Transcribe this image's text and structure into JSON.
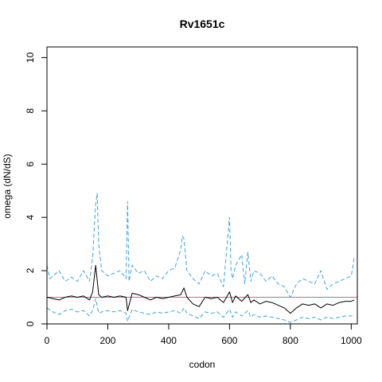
{
  "chart_data": {
    "type": "line",
    "title": "Rv1651c",
    "xlabel": "codon",
    "ylabel": "omega (dN/dS)",
    "xlim": [
      0,
      1020
    ],
    "ylim": [
      0,
      10.4
    ],
    "x_ticks": [
      0,
      200,
      400,
      600,
      800,
      1000
    ],
    "y_ticks": [
      0,
      2,
      4,
      6,
      8,
      10
    ],
    "grid": false,
    "reference_line": {
      "y": 1,
      "color": "#cc6688"
    },
    "series": [
      {
        "role": "estimate",
        "color": "#000000",
        "dash": "solid",
        "x": [
          0,
          20,
          40,
          60,
          80,
          100,
          120,
          140,
          150,
          160,
          170,
          180,
          200,
          220,
          240,
          260,
          265,
          280,
          300,
          320,
          340,
          360,
          380,
          400,
          420,
          440,
          450,
          460,
          480,
          500,
          520,
          540,
          560,
          580,
          600,
          610,
          620,
          640,
          660,
          670,
          680,
          700,
          720,
          740,
          760,
          780,
          800,
          820,
          840,
          860,
          880,
          900,
          920,
          940,
          960,
          980,
          1000,
          1010
        ],
        "y": [
          1.0,
          0.95,
          0.9,
          1.0,
          1.05,
          1.0,
          1.05,
          0.9,
          1.2,
          2.2,
          1.1,
          1.0,
          1.05,
          1.0,
          1.05,
          1.0,
          0.5,
          1.15,
          1.1,
          1.0,
          0.9,
          1.0,
          0.95,
          1.0,
          1.05,
          1.1,
          1.35,
          1.0,
          0.75,
          0.65,
          1.0,
          0.95,
          1.0,
          0.8,
          1.2,
          0.8,
          1.05,
          0.85,
          1.1,
          0.8,
          0.9,
          0.75,
          0.85,
          0.8,
          0.7,
          0.6,
          0.4,
          0.6,
          0.75,
          0.7,
          0.75,
          0.6,
          0.75,
          0.7,
          0.8,
          0.85,
          0.85,
          0.9
        ]
      },
      {
        "role": "upper-bound",
        "color": "#3fa0e0",
        "dash": "dashed",
        "x": [
          0,
          10,
          20,
          40,
          60,
          80,
          100,
          120,
          140,
          150,
          160,
          165,
          170,
          180,
          200,
          220,
          240,
          260,
          265,
          270,
          280,
          300,
          320,
          340,
          360,
          380,
          400,
          420,
          440,
          445,
          450,
          460,
          480,
          500,
          520,
          540,
          560,
          580,
          600,
          605,
          610,
          620,
          640,
          650,
          660,
          670,
          680,
          700,
          720,
          740,
          760,
          780,
          800,
          820,
          840,
          860,
          880,
          900,
          920,
          940,
          960,
          980,
          1000,
          1010
        ],
        "y": [
          2.2,
          1.7,
          1.8,
          2.0,
          1.6,
          1.75,
          1.6,
          2.0,
          1.6,
          2.5,
          4.5,
          4.9,
          3.0,
          2.0,
          1.8,
          1.9,
          2.0,
          1.7,
          4.6,
          1.6,
          2.2,
          1.9,
          2.0,
          1.6,
          1.8,
          1.7,
          2.0,
          2.1,
          2.8,
          3.3,
          3.2,
          2.0,
          1.7,
          1.5,
          2.0,
          1.8,
          1.9,
          1.4,
          4.0,
          2.0,
          1.7,
          2.2,
          2.6,
          1.5,
          2.7,
          1.6,
          2.0,
          1.9,
          1.6,
          1.8,
          1.5,
          1.4,
          1.0,
          1.5,
          1.7,
          1.6,
          1.5,
          2.0,
          1.3,
          1.5,
          1.6,
          1.7,
          1.8,
          2.5
        ]
      },
      {
        "role": "lower-bound",
        "color": "#3fa0e0",
        "dash": "dashed",
        "x": [
          0,
          20,
          40,
          60,
          80,
          100,
          120,
          140,
          150,
          160,
          170,
          180,
          200,
          220,
          240,
          260,
          265,
          280,
          300,
          320,
          340,
          360,
          380,
          400,
          420,
          440,
          450,
          460,
          480,
          500,
          520,
          540,
          560,
          580,
          600,
          610,
          620,
          640,
          660,
          670,
          680,
          700,
          720,
          740,
          760,
          780,
          800,
          820,
          840,
          860,
          880,
          900,
          920,
          940,
          960,
          980,
          1000,
          1010
        ],
        "y": [
          0.6,
          0.45,
          0.35,
          0.5,
          0.55,
          0.45,
          0.5,
          0.3,
          0.5,
          0.95,
          0.4,
          0.45,
          0.5,
          0.45,
          0.5,
          0.4,
          0.1,
          0.55,
          0.45,
          0.4,
          0.35,
          0.45,
          0.4,
          0.45,
          0.5,
          0.4,
          0.6,
          0.4,
          0.3,
          0.2,
          0.45,
          0.4,
          0.45,
          0.25,
          0.55,
          0.25,
          0.45,
          0.3,
          0.5,
          0.25,
          0.35,
          0.25,
          0.3,
          0.25,
          0.2,
          0.15,
          0.05,
          0.15,
          0.25,
          0.2,
          0.25,
          0.15,
          0.25,
          0.2,
          0.25,
          0.3,
          0.3,
          0.35
        ]
      }
    ]
  }
}
